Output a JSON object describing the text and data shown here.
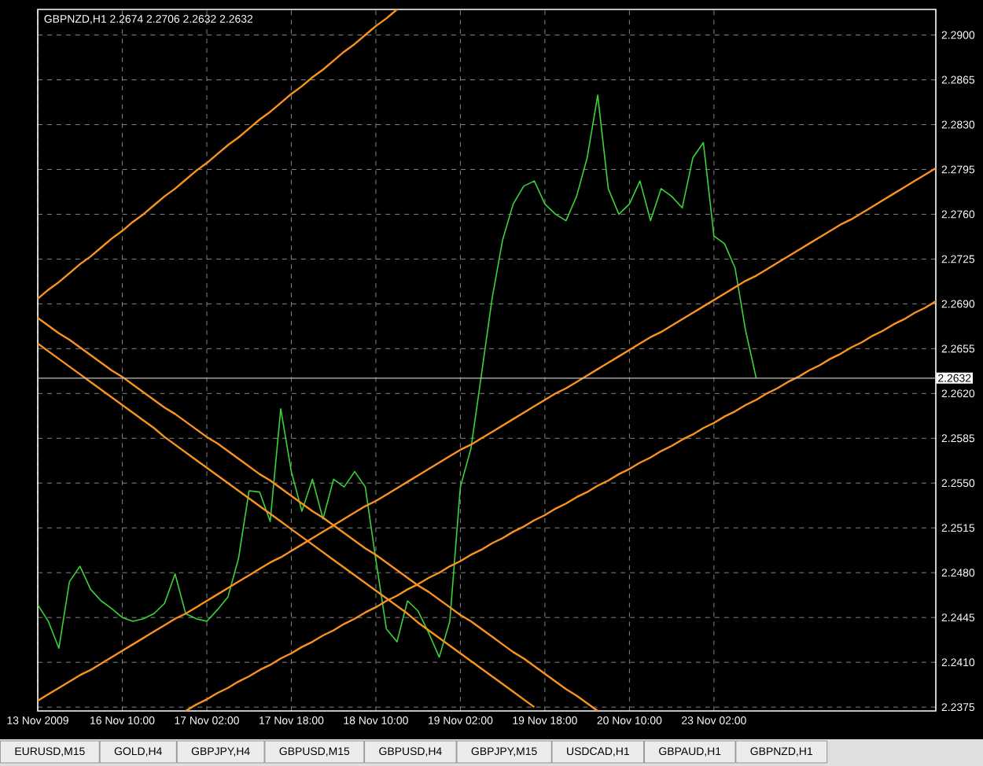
{
  "chart_data": {
    "type": "line",
    "title": "GBPNZD,H1  2.2674 2.2706 2.2632 2.2632",
    "categories": [
      "13 Nov 2009",
      null,
      null,
      null,
      null,
      null,
      null,
      null,
      "16 Nov 10:00",
      null,
      null,
      null,
      null,
      null,
      null,
      null,
      "17 Nov 02:00",
      null,
      null,
      null,
      null,
      null,
      null,
      null,
      "17 Nov 18:00",
      null,
      null,
      null,
      null,
      null,
      null,
      null,
      "18 Nov 10:00",
      null,
      null,
      null,
      null,
      null,
      null,
      null,
      "19 Nov 02:00",
      null,
      null,
      null,
      null,
      null,
      null,
      null,
      "19 Nov 18:00",
      null,
      null,
      null,
      null,
      null,
      null,
      null,
      "20 Nov 10:00",
      null,
      null,
      null,
      null,
      null,
      null,
      null,
      "23 Nov 02:00",
      null,
      null,
      null,
      null,
      null,
      null,
      null,
      null,
      null,
      null,
      null,
      null,
      null,
      null,
      null,
      null,
      null,
      null,
      null,
      null,
      null
    ],
    "series": [
      {
        "color": "#3ad43a",
        "values": [
          2.2455,
          2.2442,
          2.2421,
          2.2473,
          2.2485,
          2.2467,
          2.2458,
          2.2452,
          2.2445,
          2.2442,
          2.2444,
          2.2448,
          2.2456,
          2.2479,
          2.2448,
          2.2444,
          2.2442,
          2.2451,
          2.2461,
          2.2491,
          2.2544,
          2.2543,
          2.252,
          2.2608,
          2.2559,
          2.2528,
          2.2553,
          2.2522,
          2.2553,
          2.2547,
          2.2559,
          2.2547,
          2.249,
          2.2436,
          2.2426,
          2.2458,
          2.245,
          2.2433,
          2.2414,
          2.2442,
          2.2547,
          2.2577,
          2.2635,
          2.2694,
          2.274,
          2.2768,
          2.2782,
          2.2786,
          2.2768,
          2.276,
          2.2755,
          2.2774,
          2.2804,
          2.2853,
          2.278,
          2.276,
          2.2768,
          2.2786,
          2.2755,
          2.278,
          2.2774,
          2.2765,
          2.2804,
          2.2816,
          2.2743,
          2.2737,
          2.2718,
          2.2669,
          2.2632,
          null,
          null,
          null,
          null,
          null,
          null,
          null,
          null,
          null,
          null,
          null,
          null,
          null,
          null,
          null,
          null,
          null
        ]
      },
      {
        "color": "#f7931e",
        "values": [
          2.2694,
          2.2701,
          2.2707,
          2.2714,
          2.2721,
          2.2727,
          2.2734,
          2.2741,
          2.2747,
          2.2754,
          2.276,
          2.2767,
          2.2774,
          2.278,
          2.2787,
          2.2794,
          2.28,
          2.2807,
          2.2814,
          2.282,
          2.2827,
          2.2834,
          2.284,
          2.2847,
          2.2854,
          2.286,
          2.2867,
          2.2873,
          2.288,
          2.2887,
          2.2893,
          2.29,
          2.2907,
          2.2913,
          2.292,
          null,
          null,
          null,
          null,
          null,
          null,
          null,
          null,
          null,
          null,
          null,
          null,
          null,
          null,
          null,
          null,
          null,
          null,
          null,
          null,
          null,
          null,
          null,
          null,
          null,
          null,
          null,
          null,
          null,
          null,
          null,
          null,
          null,
          null,
          null,
          null,
          null,
          null,
          null,
          null,
          null,
          null,
          null,
          null,
          null,
          null,
          null,
          null,
          null,
          null,
          null
        ]
      },
      {
        "color": "#f7931e",
        "values": [
          2.238,
          2.2385,
          2.239,
          2.2395,
          2.24,
          2.2404,
          2.2409,
          2.2414,
          2.2419,
          2.2424,
          2.2429,
          2.2434,
          2.2439,
          2.2444,
          2.2448,
          2.2453,
          2.2458,
          2.2463,
          2.2468,
          2.2473,
          2.2478,
          2.2483,
          2.2488,
          2.2492,
          2.2497,
          2.2502,
          2.2507,
          2.2512,
          2.2517,
          2.2522,
          2.2527,
          2.2532,
          2.2536,
          2.2541,
          2.2546,
          2.2551,
          2.2556,
          2.2561,
          2.2566,
          2.2571,
          2.2576,
          2.258,
          2.2585,
          2.259,
          2.2595,
          2.26,
          2.2605,
          2.261,
          2.2615,
          2.262,
          2.2624,
          2.2629,
          2.2634,
          2.2639,
          2.2644,
          2.2649,
          2.2654,
          2.2659,
          2.2664,
          2.2668,
          2.2673,
          2.2678,
          2.2683,
          2.2688,
          2.2693,
          2.2698,
          2.2703,
          2.2708,
          2.2712,
          2.2717,
          2.2722,
          2.2727,
          2.2732,
          2.2737,
          2.2742,
          2.2747,
          2.2752,
          2.2756,
          2.2761,
          2.2766,
          2.2771,
          2.2776,
          2.2781,
          2.2786,
          2.2791,
          2.2796
        ]
      },
      {
        "color": "#f7931e",
        "values": [
          null,
          null,
          null,
          null,
          null,
          null,
          null,
          null,
          null,
          null,
          null,
          null,
          null,
          null,
          2.2372,
          2.2377,
          2.2381,
          2.2386,
          2.239,
          2.2395,
          2.2399,
          2.2404,
          2.2408,
          2.2413,
          2.2417,
          2.2422,
          2.2426,
          2.2431,
          2.2435,
          2.244,
          2.2444,
          2.2449,
          2.2453,
          2.2458,
          2.2462,
          2.2467,
          2.2471,
          2.2476,
          2.248,
          2.2485,
          2.2489,
          2.2494,
          2.2498,
          2.2503,
          2.2507,
          2.2512,
          2.2516,
          2.2521,
          2.2525,
          2.253,
          2.2534,
          2.2539,
          2.2543,
          2.2548,
          2.2552,
          2.2557,
          2.2561,
          2.2566,
          2.257,
          2.2575,
          2.2579,
          2.2584,
          2.2588,
          2.2593,
          2.2597,
          2.2602,
          2.2606,
          2.2611,
          2.2615,
          2.262,
          2.2624,
          2.2629,
          2.2633,
          2.2638,
          2.2642,
          2.2647,
          2.2651,
          2.2656,
          2.266,
          2.2665,
          2.2669,
          2.2674,
          2.2678,
          2.2683,
          2.2687,
          2.2692
        ]
      },
      {
        "color": "#f7931e",
        "values": [
          2.2679,
          2.2673,
          2.2667,
          2.2662,
          2.2656,
          2.265,
          2.2644,
          2.2638,
          2.2633,
          2.2627,
          2.2621,
          2.2615,
          2.2609,
          2.2604,
          2.2598,
          2.2592,
          2.2586,
          2.2581,
          2.2575,
          2.2569,
          2.2563,
          2.2557,
          2.2552,
          2.2546,
          2.254,
          2.2534,
          2.2528,
          2.2523,
          2.2517,
          2.2511,
          2.2505,
          2.2499,
          2.2494,
          2.2488,
          2.2482,
          2.2476,
          2.247,
          2.2465,
          2.2459,
          2.2453,
          2.2447,
          2.2442,
          2.2436,
          2.243,
          2.2424,
          2.2418,
          2.2413,
          2.2407,
          2.2401,
          2.2395,
          2.2389,
          2.2384,
          2.2378,
          2.2372,
          null,
          null,
          null,
          null,
          null,
          null,
          null,
          null,
          null,
          null,
          null,
          null,
          null,
          null,
          null,
          null,
          null,
          null,
          null,
          null,
          null,
          null,
          null,
          null,
          null,
          null,
          null,
          null,
          null,
          null,
          null,
          null
        ]
      },
      {
        "color": "#f7931e",
        "values": [
          2.2659,
          2.2653,
          2.2647,
          2.2641,
          2.2635,
          2.2629,
          2.2623,
          2.2617,
          2.2611,
          2.2605,
          2.2599,
          2.2593,
          2.2586,
          2.258,
          2.2574,
          2.2568,
          2.2562,
          2.2556,
          2.255,
          2.2544,
          2.2538,
          2.2532,
          2.2526,
          2.252,
          2.2514,
          2.2508,
          2.2502,
          2.2496,
          2.249,
          2.2484,
          2.2478,
          2.2472,
          2.2466,
          2.246,
          2.2454,
          2.2448,
          2.2441,
          2.2435,
          2.2429,
          2.2423,
          2.2417,
          2.2411,
          2.2405,
          2.2399,
          2.2393,
          2.2387,
          2.2381,
          2.2375,
          null,
          null,
          null,
          null,
          null,
          null,
          null,
          null,
          null,
          null,
          null,
          null,
          null,
          null,
          null,
          null,
          null,
          null,
          null,
          null,
          null,
          null,
          null,
          null,
          null,
          null,
          null,
          null,
          null,
          null,
          null,
          null,
          null,
          null,
          null,
          null,
          null,
          null
        ]
      }
    ],
    "ylim": [
      2.2372,
      2.292
    ],
    "yticks": [
      {
        "value": 2.2375,
        "label": "2.2375"
      },
      {
        "value": 2.241,
        "label": "2.2410"
      },
      {
        "value": 2.2445,
        "label": "2.2445"
      },
      {
        "value": 2.248,
        "label": "2.2480"
      },
      {
        "value": 2.2515,
        "label": "2.2515"
      },
      {
        "value": 2.255,
        "label": "2.2550"
      },
      {
        "value": 2.2585,
        "label": "2.2585"
      },
      {
        "value": 2.262,
        "label": "2.2620"
      },
      {
        "value": 2.2655,
        "label": "2.2655"
      },
      {
        "value": 2.269,
        "label": "2.2690"
      },
      {
        "value": 2.2725,
        "label": "2.2725"
      },
      {
        "value": 2.276,
        "label": "2.2760"
      },
      {
        "value": 2.2795,
        "label": "2.2795"
      },
      {
        "value": 2.283,
        "label": "2.2830"
      },
      {
        "value": 2.2865,
        "label": "2.2865"
      },
      {
        "value": 2.29,
        "label": "2.2900"
      }
    ],
    "grid": true,
    "ref_lines": [
      {
        "axis": "y",
        "value": 2.2632,
        "label": "2.2632",
        "color": "#c0c0c0"
      }
    ],
    "annotations": [
      "EURUSD,M15",
      "GOLD,H4",
      "GBPJPY,H4",
      "GBPUSD,M15",
      "GBPUSD,H4",
      "GBPJPY,M15",
      "USDCAD,H1",
      "GBPAUD,H1",
      "GBPNZD,H1"
    ]
  }
}
